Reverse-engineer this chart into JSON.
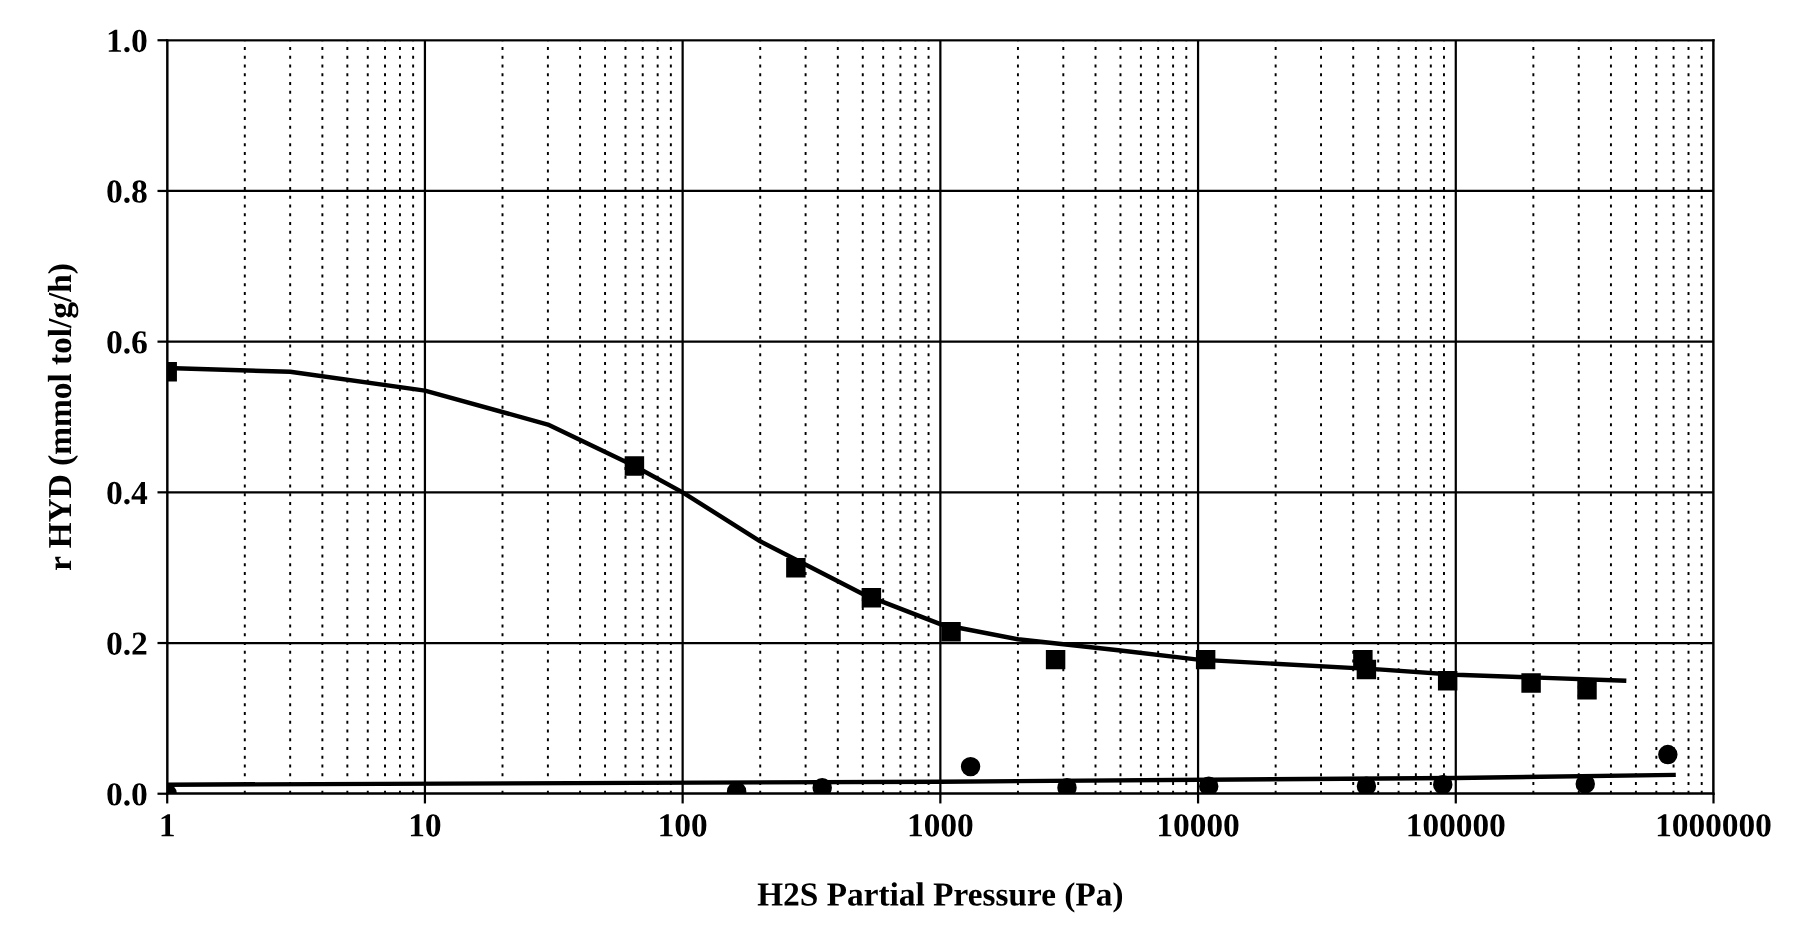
{
  "chart_data": {
    "type": "scatter",
    "xlabel": "H2S Partial Pressure (Pa)",
    "ylabel": "r HYD (mmol tol/g/h)",
    "log": "x",
    "grid": true,
    "legend": false,
    "xlim": [
      1,
      1000000
    ],
    "xticks": [
      1,
      10,
      100,
      1000,
      10000,
      100000,
      1000000
    ],
    "ylim": [
      0,
      1
    ],
    "yticks": [
      {
        "value": 0,
        "label": "0.0"
      },
      0.2,
      0.4,
      0.6,
      0.8,
      {
        "value": 1,
        "label": "1.0"
      }
    ],
    "series": [
      {
        "marker": "square",
        "color": "#000000",
        "x": [
          1,
          65,
          275,
          540,
          1100,
          2800,
          10700,
          43600,
          45000,
          93000,
          196000,
          323000
        ],
        "values": [
          0.56,
          0.435,
          0.3,
          0.26,
          0.215,
          0.178,
          0.178,
          0.178,
          0.165,
          0.15,
          0.147,
          0.138
        ]
      },
      {
        "marker": "circle",
        "color": "#000000",
        "x": [
          1,
          162,
          348,
          1310,
          3100,
          11000,
          45000,
          89000,
          318000,
          665000
        ],
        "values": [
          0.0,
          0.003,
          0.008,
          0.036,
          0.008,
          0.01,
          0.01,
          0.012,
          0.013,
          0.052
        ]
      },
      {
        "type": "line",
        "marker": "none",
        "line_style": "solid",
        "color": "#000000",
        "x": [
          1,
          3,
          10,
          30,
          65,
          100,
          200,
          500,
          1000,
          2000,
          5000,
          10000,
          50000,
          100000,
          450000
        ],
        "values": [
          0.565,
          0.56,
          0.535,
          0.49,
          0.435,
          0.4,
          0.335,
          0.265,
          0.225,
          0.205,
          0.19,
          0.178,
          0.165,
          0.158,
          0.15
        ]
      },
      {
        "type": "line",
        "marker": "none",
        "line_style": "solid",
        "color": "#000000",
        "x": [
          1,
          1000,
          100000,
          700000
        ],
        "values": [
          0.012,
          0.016,
          0.021,
          0.025
        ]
      }
    ]
  }
}
